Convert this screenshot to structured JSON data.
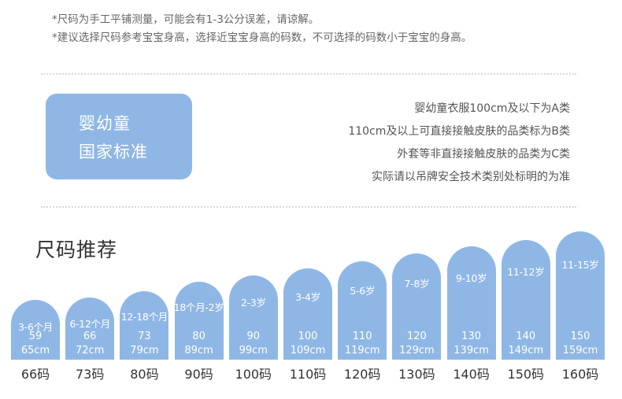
{
  "notes": [
    "*尺码为手工平铺测量，可能会有1-3公分误差，请谅解。",
    "*建议选择尺码参考宝宝身高，选择近宝宝身高的码数，不可选择的码数小于宝宝的身高。"
  ],
  "standard": {
    "line1": "婴幼童",
    "line2": "国家标准",
    "rules": [
      "婴幼童衣服100cm及以下为A类",
      "110cm及以上可直接接触皮肤的品类标为B类",
      "外套等非直接接触皮肤的品类为C类",
      "实际请以吊牌安全技术类别处标明的为准"
    ]
  },
  "section_title": "尺码推荐",
  "sizes": [
    {
      "age": "3-6个月",
      "height": "59",
      "range": "65cm",
      "label": "66码"
    },
    {
      "age": "6-12个月",
      "height": "66",
      "range": "72cm",
      "label": "73码"
    },
    {
      "age": "12-18个月",
      "height": "73",
      "range": "79cm",
      "label": "80码"
    },
    {
      "age": "18个月-2岁",
      "height": "80",
      "range": "89cm",
      "label": "90码"
    },
    {
      "age": "2-3岁",
      "height": "90",
      "range": "99cm",
      "label": "100码"
    },
    {
      "age": "3-4岁",
      "height": "100",
      "range": "109cm",
      "label": "110码"
    },
    {
      "age": "5-6岁",
      "height": "110",
      "range": "119cm",
      "label": "120码"
    },
    {
      "age": "7-8岁",
      "height": "120",
      "range": "129cm",
      "label": "130码"
    },
    {
      "age": "9-10岁",
      "height": "130",
      "range": "139cm",
      "label": "140码"
    },
    {
      "age": "11-12岁",
      "height": "140",
      "range": "149cm",
      "label": "150码"
    },
    {
      "age": "11-15岁",
      "height": "150",
      "range": "159cm",
      "label": "160码"
    }
  ],
  "colors": {
    "accent": "#8fb7e6"
  }
}
